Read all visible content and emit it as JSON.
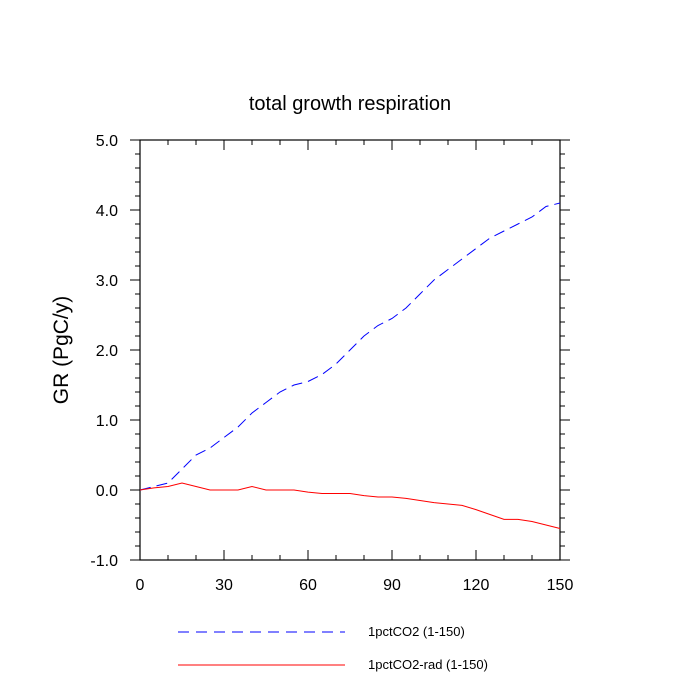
{
  "chart_data": {
    "type": "line",
    "title": "total growth respiration",
    "xlabel": "",
    "ylabel": "GR  (PgC/y)",
    "xlim": [
      0,
      150
    ],
    "ylim": [
      -1.0,
      5.0
    ],
    "x_ticks": [
      0,
      30,
      60,
      90,
      120,
      150
    ],
    "x_tick_labels": [
      "0",
      "30",
      "60",
      "90",
      "120",
      "150"
    ],
    "y_ticks": [
      -1.0,
      0.0,
      1.0,
      2.0,
      3.0,
      4.0,
      5.0
    ],
    "y_tick_labels": [
      "-1.0",
      "0.0",
      "1.0",
      "2.0",
      "3.0",
      "4.0",
      "5.0"
    ],
    "grid": false,
    "legend_position": "bottom",
    "series": [
      {
        "name": "1pctCO2 (1-150)",
        "color": "#0000ff",
        "style": "dashed",
        "x": [
          0,
          5,
          10,
          15,
          20,
          25,
          30,
          35,
          40,
          45,
          50,
          55,
          60,
          65,
          70,
          75,
          80,
          85,
          90,
          95,
          100,
          105,
          110,
          115,
          120,
          125,
          130,
          135,
          140,
          145,
          150
        ],
        "values": [
          0.0,
          0.05,
          0.1,
          0.3,
          0.5,
          0.6,
          0.75,
          0.9,
          1.1,
          1.25,
          1.4,
          1.5,
          1.55,
          1.65,
          1.8,
          2.0,
          2.2,
          2.35,
          2.45,
          2.6,
          2.8,
          3.0,
          3.15,
          3.3,
          3.45,
          3.6,
          3.7,
          3.8,
          3.9,
          4.05,
          4.1
        ]
      },
      {
        "name": "1pctCO2-rad (1-150)",
        "color": "#ff0000",
        "style": "solid",
        "x": [
          0,
          5,
          10,
          15,
          20,
          25,
          30,
          35,
          40,
          45,
          50,
          55,
          60,
          65,
          70,
          75,
          80,
          85,
          90,
          95,
          100,
          105,
          110,
          115,
          120,
          125,
          130,
          135,
          140,
          145,
          150
        ],
        "values": [
          0.0,
          0.03,
          0.05,
          0.1,
          0.05,
          0.0,
          0.0,
          0.0,
          0.05,
          0.0,
          0.0,
          0.0,
          -0.03,
          -0.05,
          -0.05,
          -0.05,
          -0.08,
          -0.1,
          -0.1,
          -0.12,
          -0.15,
          -0.18,
          -0.2,
          -0.22,
          -0.28,
          -0.35,
          -0.42,
          -0.42,
          -0.45,
          -0.5,
          -0.55
        ]
      }
    ]
  }
}
